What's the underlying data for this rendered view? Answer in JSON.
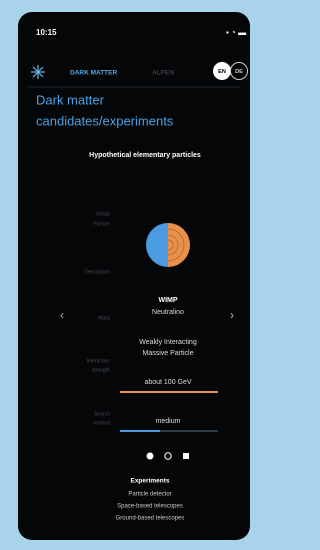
{
  "status_bar": {
    "time": "10:15"
  },
  "nav": {
    "items": [
      "DARK MATTER",
      "ALPEN"
    ],
    "languages": [
      "EN",
      "DE"
    ]
  },
  "header": {
    "title_lines": [
      "Dark matter",
      "candidates/experiments"
    ],
    "subtitle": "Hypothetical elementary particles"
  },
  "card": {
    "labels": [
      [
        "Group",
        "Particle"
      ],
      [
        "Description"
      ],
      [
        "Mass"
      ],
      [
        "Interaction",
        "strength"
      ],
      [
        "Search",
        "method"
      ]
    ],
    "group": "WIMP",
    "particle": "Neutralino",
    "description_lines": [
      "Weakly Interacting",
      "Massive Particle"
    ],
    "mass": "about 100 GeV",
    "search_method": "medium"
  },
  "experiments": {
    "title": "Experiments",
    "items": [
      "Particle detector",
      "Space-based telescopes",
      "Ground-based telescopes"
    ]
  }
}
